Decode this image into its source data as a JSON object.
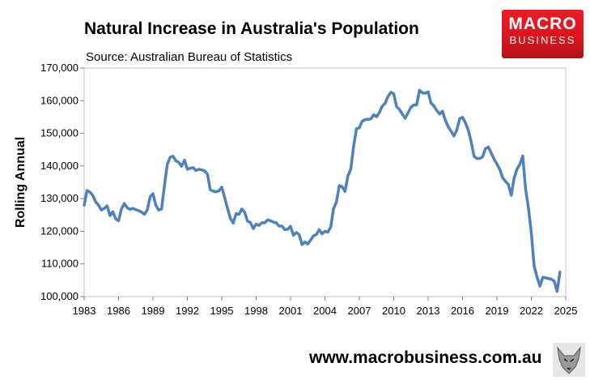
{
  "header": {
    "title": "Natural Increase in Australia's Population",
    "source": "Source: Australian Bureau of Statistics"
  },
  "branding": {
    "logo_line1": "MACRO",
    "logo_line2": "BUSINESS",
    "website": "www.macrobusiness.com.au",
    "logo_color": "#e0181f"
  },
  "chart_data": {
    "type": "line",
    "ylabel": "Rolling Annual",
    "xlabel": "",
    "xlim": [
      1983,
      2025
    ],
    "ylim": [
      100000,
      170000
    ],
    "x_ticks": [
      "1983",
      "1986",
      "1989",
      "1992",
      "1995",
      "1998",
      "2001",
      "2004",
      "2007",
      "2010",
      "2013",
      "2016",
      "2019",
      "2022",
      "2025"
    ],
    "y_ticks": [
      "100,000",
      "110,000",
      "120,000",
      "130,000",
      "140,000",
      "150,000",
      "160,000",
      "170,000"
    ],
    "grid": false,
    "legend": "none",
    "series": [
      {
        "color": "#4f81bd",
        "points": [
          [
            1983.0,
            128000
          ],
          [
            1983.25,
            132500
          ],
          [
            1983.5,
            132000
          ],
          [
            1983.75,
            131000
          ],
          [
            1984.0,
            129000
          ],
          [
            1984.25,
            128000
          ],
          [
            1984.5,
            126500
          ],
          [
            1984.75,
            127000
          ],
          [
            1985.0,
            127800
          ],
          [
            1985.25,
            124800
          ],
          [
            1985.5,
            126000
          ],
          [
            1985.75,
            123800
          ],
          [
            1986.0,
            123200
          ],
          [
            1986.25,
            126800
          ],
          [
            1986.5,
            128500
          ],
          [
            1986.75,
            127200
          ],
          [
            1987.0,
            126700
          ],
          [
            1987.25,
            127000
          ],
          [
            1987.5,
            126600
          ],
          [
            1987.75,
            126300
          ],
          [
            1988.0,
            125900
          ],
          [
            1988.25,
            125200
          ],
          [
            1988.5,
            126500
          ],
          [
            1988.75,
            130500
          ],
          [
            1989.0,
            131500
          ],
          [
            1989.25,
            128000
          ],
          [
            1989.5,
            126500
          ],
          [
            1989.75,
            126800
          ],
          [
            1990.0,
            134000
          ],
          [
            1990.25,
            140500
          ],
          [
            1990.5,
            142700
          ],
          [
            1990.75,
            143000
          ],
          [
            1991.0,
            141600
          ],
          [
            1991.25,
            141100
          ],
          [
            1991.5,
            139900
          ],
          [
            1991.75,
            141800
          ],
          [
            1992.0,
            139000
          ],
          [
            1992.25,
            139300
          ],
          [
            1992.5,
            139500
          ],
          [
            1992.75,
            138600
          ],
          [
            1993.0,
            139000
          ],
          [
            1993.25,
            138800
          ],
          [
            1993.5,
            138500
          ],
          [
            1993.75,
            137500
          ],
          [
            1994.0,
            132700
          ],
          [
            1994.25,
            132300
          ],
          [
            1994.5,
            132100
          ],
          [
            1994.75,
            132400
          ],
          [
            1995.0,
            133500
          ],
          [
            1995.25,
            130400
          ],
          [
            1995.5,
            127000
          ],
          [
            1995.75,
            124000
          ],
          [
            1996.0,
            122500
          ],
          [
            1996.25,
            125400
          ],
          [
            1996.5,
            125200
          ],
          [
            1996.75,
            126800
          ],
          [
            1997.0,
            125800
          ],
          [
            1997.25,
            123100
          ],
          [
            1997.5,
            122700
          ],
          [
            1997.75,
            120800
          ],
          [
            1998.0,
            122200
          ],
          [
            1998.25,
            121800
          ],
          [
            1998.5,
            122600
          ],
          [
            1998.75,
            122600
          ],
          [
            1999.0,
            123500
          ],
          [
            1999.25,
            123200
          ],
          [
            1999.5,
            122800
          ],
          [
            1999.75,
            122600
          ],
          [
            2000.0,
            121600
          ],
          [
            2000.25,
            121600
          ],
          [
            2000.5,
            120500
          ],
          [
            2000.75,
            120600
          ],
          [
            2001.0,
            121500
          ],
          [
            2001.25,
            118800
          ],
          [
            2001.5,
            119600
          ],
          [
            2001.75,
            119000
          ],
          [
            2002.0,
            115900
          ],
          [
            2002.25,
            116700
          ],
          [
            2002.5,
            116100
          ],
          [
            2002.75,
            117300
          ],
          [
            2003.0,
            118600
          ],
          [
            2003.25,
            119000
          ],
          [
            2003.5,
            120500
          ],
          [
            2003.75,
            119200
          ],
          [
            2004.0,
            120000
          ],
          [
            2004.25,
            119700
          ],
          [
            2004.5,
            121300
          ],
          [
            2004.75,
            126900
          ],
          [
            2005.0,
            128900
          ],
          [
            2005.25,
            134000
          ],
          [
            2005.5,
            133600
          ],
          [
            2005.75,
            132200
          ],
          [
            2006.0,
            136900
          ],
          [
            2006.25,
            139000
          ],
          [
            2006.5,
            146000
          ],
          [
            2006.75,
            151400
          ],
          [
            2007.0,
            151700
          ],
          [
            2007.25,
            153700
          ],
          [
            2007.5,
            154200
          ],
          [
            2007.75,
            154300
          ],
          [
            2008.0,
            154400
          ],
          [
            2008.25,
            155700
          ],
          [
            2008.5,
            155100
          ],
          [
            2008.75,
            156400
          ],
          [
            2009.0,
            158300
          ],
          [
            2009.25,
            159200
          ],
          [
            2009.5,
            161300
          ],
          [
            2009.75,
            162600
          ],
          [
            2010.0,
            162100
          ],
          [
            2010.25,
            158200
          ],
          [
            2010.5,
            157300
          ],
          [
            2010.75,
            155900
          ],
          [
            2011.0,
            154600
          ],
          [
            2011.25,
            156300
          ],
          [
            2011.5,
            158000
          ],
          [
            2011.75,
            158700
          ],
          [
            2012.0,
            158700
          ],
          [
            2012.25,
            163200
          ],
          [
            2012.5,
            162400
          ],
          [
            2012.75,
            162300
          ],
          [
            2013.0,
            162700
          ],
          [
            2013.25,
            159300
          ],
          [
            2013.5,
            158400
          ],
          [
            2013.75,
            157000
          ],
          [
            2014.0,
            155900
          ],
          [
            2014.25,
            156800
          ],
          [
            2014.5,
            154000
          ],
          [
            2014.75,
            152000
          ],
          [
            2015.0,
            150700
          ],
          [
            2015.25,
            149200
          ],
          [
            2015.5,
            151000
          ],
          [
            2015.75,
            154500
          ],
          [
            2016.0,
            154900
          ],
          [
            2016.25,
            153300
          ],
          [
            2016.5,
            151000
          ],
          [
            2016.75,
            147500
          ],
          [
            2017.0,
            143000
          ],
          [
            2017.25,
            142300
          ],
          [
            2017.5,
            142300
          ],
          [
            2017.75,
            142800
          ],
          [
            2018.0,
            145300
          ],
          [
            2018.25,
            145800
          ],
          [
            2018.5,
            144000
          ],
          [
            2018.75,
            142100
          ],
          [
            2019.0,
            140600
          ],
          [
            2019.25,
            139000
          ],
          [
            2019.5,
            136400
          ],
          [
            2019.75,
            135300
          ],
          [
            2020.0,
            134300
          ],
          [
            2020.25,
            131000
          ],
          [
            2020.5,
            136400
          ],
          [
            2020.75,
            139000
          ],
          [
            2021.0,
            140500
          ],
          [
            2021.25,
            143100
          ],
          [
            2021.5,
            133000
          ],
          [
            2021.75,
            127000
          ],
          [
            2022.0,
            119500
          ],
          [
            2022.25,
            109300
          ],
          [
            2022.5,
            106000
          ],
          [
            2022.75,
            103200
          ],
          [
            2023.0,
            105900
          ],
          [
            2023.25,
            105700
          ],
          [
            2023.5,
            105500
          ],
          [
            2023.75,
            105300
          ],
          [
            2024.0,
            104700
          ],
          [
            2024.25,
            101600
          ],
          [
            2024.5,
            107500
          ]
        ]
      }
    ]
  }
}
